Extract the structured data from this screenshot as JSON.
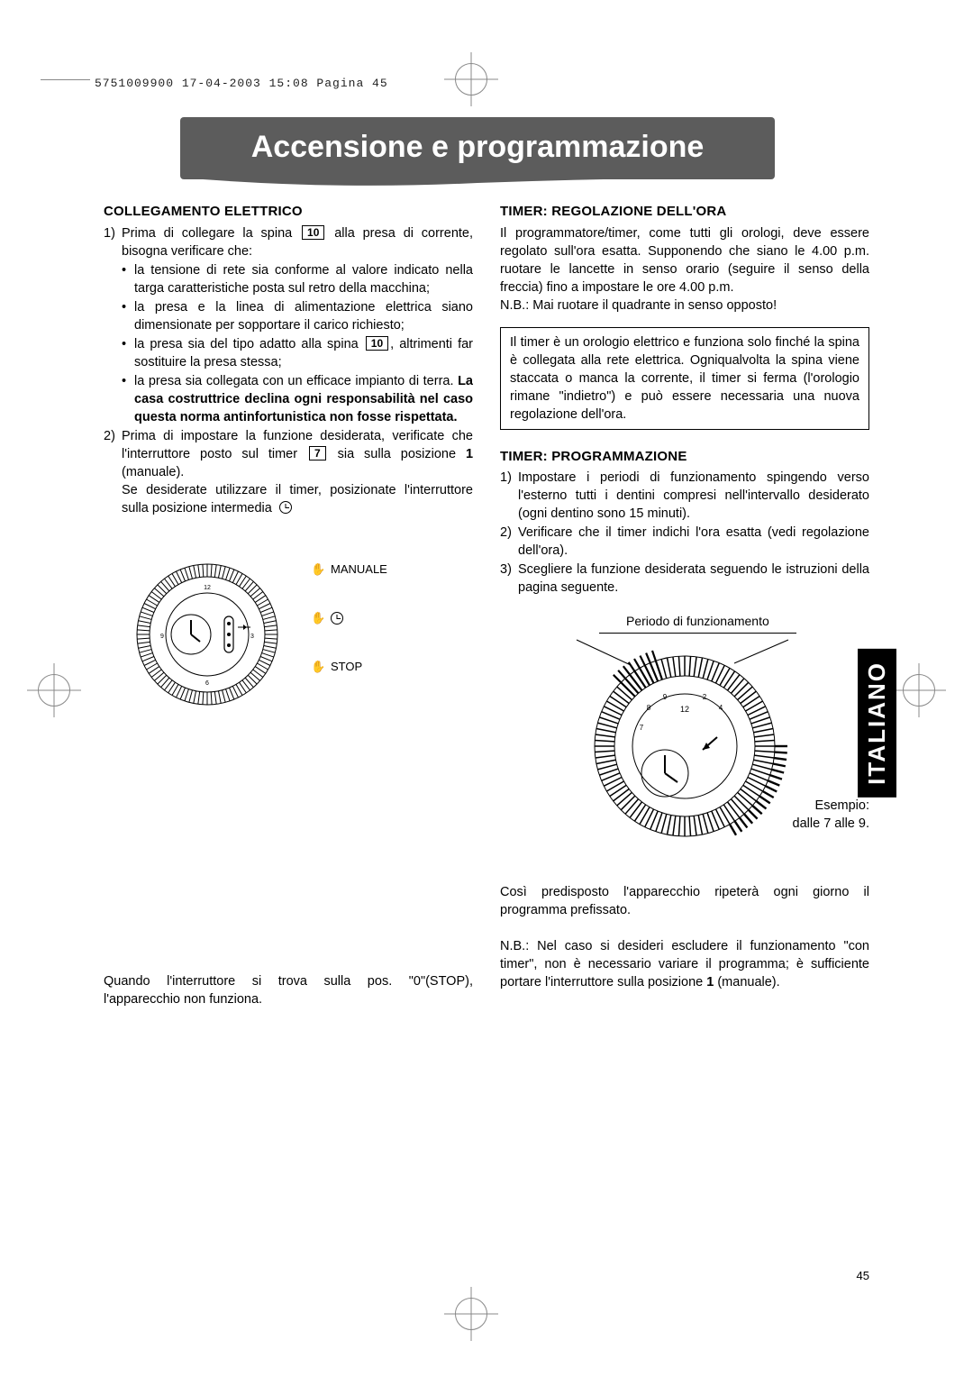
{
  "header_line": "5751009900  17-04-2003  15:08  Pagina 45",
  "banner": "Accensione e programmazione",
  "side_tab": "ITALIANO",
  "page_number": "45",
  "colors": {
    "banner_bg": "#5c5c5c",
    "banner_text": "#ffffff",
    "side_tab_bg": "#000000",
    "side_tab_text": "#ffffff",
    "text": "#000000",
    "crop": "#888888"
  },
  "left": {
    "h1": "COLLEGAMENTO ELETTRICO",
    "item1_pre": "Prima di collegare la spina",
    "item1_ref": "10",
    "item1_post": "alla presa di corrente, bisogna verificare che:",
    "bullets": {
      "b1": "la tensione di rete sia conforme al valore indicato nella targa caratteristiche posta sul retro della macchina;",
      "b2": "la presa e la linea di alimentazione elettrica siano dimensionate per sopportare il carico richiesto;",
      "b3_pre": "la presa sia del tipo adatto alla spina",
      "b3_ref": "10",
      "b3_post": ", altrimenti far sostituire la presa stessa;",
      "b4_plain": "la presa sia collegata con un efficace impianto di terra. ",
      "b4_bold": "La casa costruttrice declina ogni responsabilità nel caso questa norma antinfortunistica non fosse rispettata."
    },
    "item2_pre": "Prima di impostare la funzione desiderata, verificate che l'interruttore posto sul timer",
    "item2_ref": "7",
    "item2_mid": "sia sulla posizione ",
    "item2_bold": "1",
    "item2_post": " (manuale).",
    "item2_tail": "Se desiderate utilizzare il timer, posizionate l'interruttore sulla posizione intermedia",
    "switch": {
      "manual": "MANUALE",
      "stop": "STOP"
    },
    "note": "Quando l'interruttore si trova sulla pos. \"0\"(STOP), l'apparecchio non funziona."
  },
  "right": {
    "h1": "TIMER: REGOLAZIONE DELL'ORA",
    "p1": "Il programmatore/timer, come tutti gli orologi, deve essere regolato sull'ora esatta. Supponendo che siano le 4.00 p.m. ruotare le lancette in senso orario (seguire il senso della freccia) fino a impostare le ore 4.00 p.m.",
    "p2": "N.B.: Mai ruotare il quadrante in senso opposto!",
    "framed": "Il timer è un orologio elettrico e funziona solo finché la spina è collegata alla rete elettrica. Ogniqualvolta la spina viene staccata o manca la corrente, il timer si ferma (l'orologio rimane \"indietro\") e può essere necessaria una nuova regolazione dell'ora.",
    "h2": "TIMER: PROGRAMMAZIONE",
    "prog1": "Impostare i periodi di funzionamento spingendo verso l'esterno tutti i dentini compresi nell'intervallo desiderato (ogni dentino sono 15 minuti).",
    "prog2": "Verificare che il timer indichi l'ora esatta (vedi regolazione dell'ora).",
    "prog3": "Scegliere la funzione desiderata seguendo le istruzioni della pagina seguente.",
    "fig_top": "Periodo di funzionamento",
    "fig_right1": "Esempio:",
    "fig_right2": "dalle 7  alle 9.",
    "closing1": "Così predisposto l'apparecchio ripeterà ogni giorno il programma prefissato.",
    "closing2_pre": "N.B.: Nel caso si desideri escludere il funzionamento \"con timer\", non è necessario variare il programma; è sufficiente portare l'interruttore sulla posizione ",
    "closing2_bold": "1",
    "closing2_post": " (manuale)."
  }
}
